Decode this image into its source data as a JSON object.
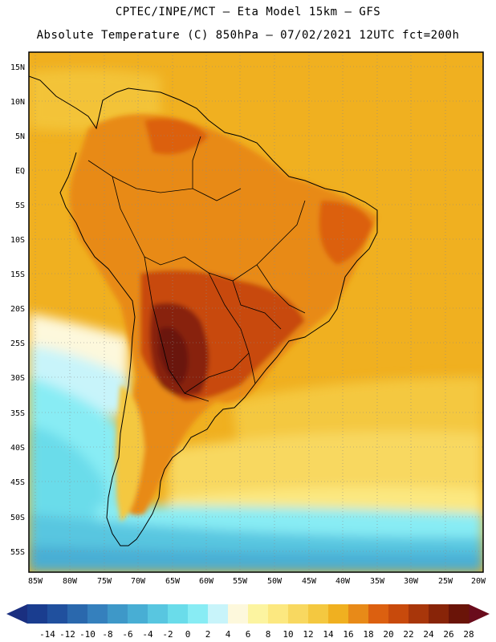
{
  "header": {
    "line1": "CPTEC/INPE/MCT –  Eta Model 15km – GFS",
    "line2": "Absolute Temperature (C) 850hPa – 07/02/2021 12UTC fct=200h"
  },
  "map": {
    "lat_labels": [
      "15N",
      "10N",
      "5N",
      "EQ",
      "5S",
      "10S",
      "15S",
      "20S",
      "25S",
      "30S",
      "35S",
      "40S",
      "45S",
      "50S",
      "55S"
    ],
    "lon_labels": [
      "85W",
      "80W",
      "75W",
      "70W",
      "65W",
      "60W",
      "55W",
      "50W",
      "45W",
      "40W",
      "35W",
      "30W",
      "25W",
      "20W"
    ],
    "background_color": "#f0b020"
  },
  "colorbar": {
    "ticks": [
      "-14",
      "-12",
      "-10",
      "-8",
      "-6",
      "-4",
      "-2",
      "0",
      "2",
      "4",
      "6",
      "8",
      "10",
      "12",
      "14",
      "16",
      "18",
      "20",
      "22",
      "24",
      "26",
      "28"
    ],
    "colors": [
      "#1a3d8f",
      "#20509e",
      "#2a68ad",
      "#3580bd",
      "#3e98c8",
      "#48aed4",
      "#58c6e0",
      "#6adcea",
      "#88ecf4",
      "#c8f4fa",
      "#fdf8dc",
      "#fcf4a0",
      "#fce880",
      "#f8d860",
      "#f4c840",
      "#f0b020",
      "#e88a18",
      "#dc6010",
      "#c84a0c",
      "#a8360a",
      "#882408",
      "#6a1408"
    ],
    "low_arrow_color": "#1a2f80",
    "high_arrow_color": "#6a0c1c"
  }
}
